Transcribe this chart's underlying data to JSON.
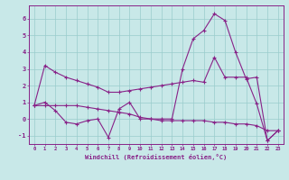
{
  "x": [
    0,
    1,
    2,
    3,
    4,
    5,
    6,
    7,
    8,
    9,
    10,
    11,
    12,
    13,
    14,
    15,
    16,
    17,
    18,
    19,
    20,
    21,
    22,
    23
  ],
  "line1": [
    0.8,
    3.2,
    2.8,
    2.5,
    2.3,
    2.1,
    1.9,
    1.6,
    1.6,
    1.7,
    1.8,
    1.9,
    2.0,
    2.1,
    2.2,
    2.3,
    2.2,
    3.7,
    2.5,
    2.5,
    2.5,
    0.9,
    -1.3,
    -0.7
  ],
  "line2": [
    0.8,
    1.0,
    0.5,
    -0.2,
    -0.3,
    -0.1,
    0.0,
    -1.1,
    0.6,
    1.0,
    0.0,
    0.0,
    0.0,
    0.0,
    3.0,
    4.8,
    5.3,
    6.3,
    5.9,
    4.0,
    2.4,
    2.5,
    -1.3,
    -0.7
  ],
  "line3": [
    0.8,
    0.8,
    0.8,
    0.8,
    0.8,
    0.7,
    0.6,
    0.5,
    0.4,
    0.3,
    0.1,
    0.0,
    -0.1,
    -0.1,
    -0.1,
    -0.1,
    -0.1,
    -0.2,
    -0.2,
    -0.3,
    -0.3,
    -0.4,
    -0.7,
    -0.7
  ],
  "line_color": "#882288",
  "background_color": "#c8e8e8",
  "grid_color": "#99cccc",
  "xlabel": "Windchill (Refroidissement éolien,°C)",
  "ylim": [
    -1.5,
    6.8
  ],
  "xlim": [
    -0.5,
    23.5
  ],
  "yticks": [
    -1,
    0,
    1,
    2,
    3,
    4,
    5,
    6
  ],
  "xticks": [
    0,
    1,
    2,
    3,
    4,
    5,
    6,
    7,
    8,
    9,
    10,
    11,
    12,
    13,
    14,
    15,
    16,
    17,
    18,
    19,
    20,
    21,
    22,
    23
  ]
}
